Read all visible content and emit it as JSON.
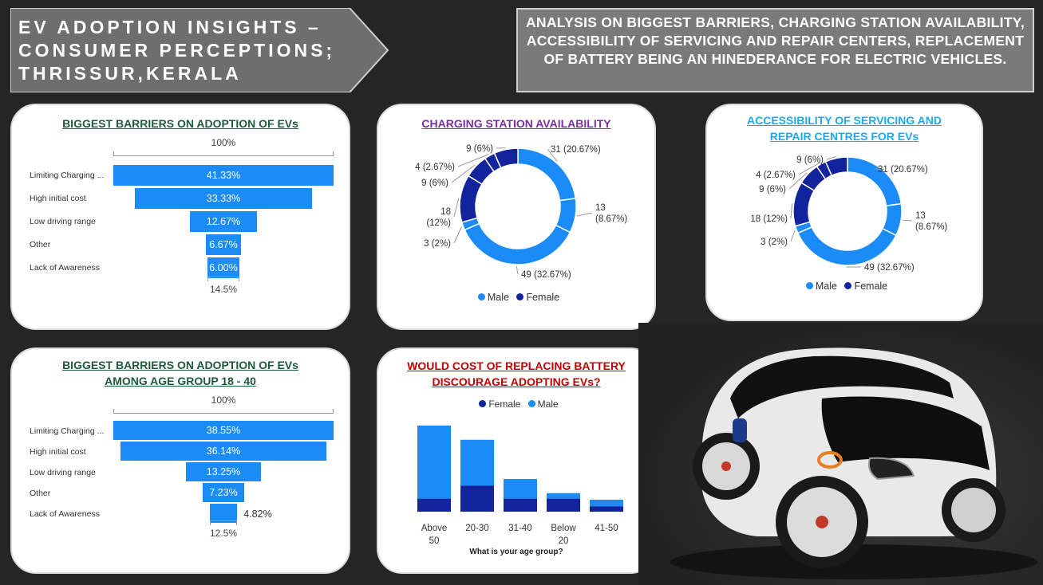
{
  "header": {
    "title_lines": [
      "EV ADOPTION INSIGHTS –",
      "CONSUMER PERCEPTIONS;",
      "THRISSUR,KERALA"
    ],
    "analysis": "ANALYSIS ON BIGGEST BARRIERS, CHARGING STATION AVAILABILITY, ACCESSIBILITY OF SERVICING AND REPAIR CENTERS, REPLACEMENT OF BATTERY BEING AN HINEDERANCE FOR ELECTRIC VEHICLES."
  },
  "colors": {
    "male": "#1b8cf7",
    "female": "#12239e",
    "title_green": "#1f5a3c",
    "title_purple": "#7a2fa0",
    "title_cyan": "#1aaaf0",
    "title_red": "#c00000"
  },
  "chart_data": [
    {
      "type": "funnel",
      "title": "BIGGEST BARRIERS ON ADOPTION OF EVs",
      "top_caption": "100%",
      "bottom_caption": "14.5%",
      "categories": [
        "Limiting Charging ...",
        "High initial cost",
        "Low driving range",
        "Other",
        "Lack of Awareness"
      ],
      "values": [
        41.33,
        33.33,
        12.67,
        6.67,
        6.0
      ],
      "value_labels": [
        "41.33%",
        "33.33%",
        "12.67%",
        "6.67%",
        "6.00%"
      ]
    },
    {
      "type": "pie",
      "title": "CHARGING STATION AVAILABILITY",
      "series": [
        {
          "name": "Male",
          "values": [
            31,
            13,
            49
          ]
        },
        {
          "name": "Female",
          "values": [
            3,
            18,
            9,
            4,
            9
          ]
        }
      ],
      "slices": [
        {
          "value": 31,
          "label": "31 (20.67%)",
          "series": "Male"
        },
        {
          "value": 13,
          "label": "13 (8.67%)",
          "series": "Male"
        },
        {
          "value": 49,
          "label": "49 (32.67%)",
          "series": "Male"
        },
        {
          "value": 3,
          "label": "3 (2%)",
          "series": "Male"
        },
        {
          "value": 18,
          "label": "18 (12%)",
          "series": "Female"
        },
        {
          "value": 9,
          "label": "9 (6%)",
          "series": "Female"
        },
        {
          "value": 4,
          "label": "4 (2.67%)",
          "series": "Female"
        },
        {
          "value": 9,
          "label": "9 (6%)",
          "series": "Female"
        }
      ],
      "legend": [
        "Male",
        "Female"
      ]
    },
    {
      "type": "pie",
      "title": "ACCESSIBILITY  OF SERVICING AND REPAIR CENTRES FOR EVs",
      "slices": [
        {
          "value": 31,
          "label": "31 (20.67%)",
          "series": "Male"
        },
        {
          "value": 13,
          "label": "13 (8.67%)",
          "series": "Male"
        },
        {
          "value": 49,
          "label": "49 (32.67%)",
          "series": "Male"
        },
        {
          "value": 3,
          "label": "3 (2%)",
          "series": "Male"
        },
        {
          "value": 18,
          "label": "18 (12%)",
          "series": "Female"
        },
        {
          "value": 9,
          "label": "9 (6%)",
          "series": "Female"
        },
        {
          "value": 4,
          "label": "4 (2.67%)",
          "series": "Female"
        },
        {
          "value": 9,
          "label": "9 (6%)",
          "series": "Female"
        }
      ],
      "legend": [
        "Male",
        "Female"
      ]
    },
    {
      "type": "funnel",
      "title": "BIGGEST BARRIERS ON ADOPTION OF EVs AMONG AGE GROUP 18 - 40",
      "top_caption": "100%",
      "bottom_caption": "12.5%",
      "categories": [
        "Limiting Charging ...",
        "High initial cost",
        "Low driving range",
        "Other",
        "Lack of Awareness"
      ],
      "values": [
        38.55,
        36.14,
        13.25,
        7.23,
        4.82
      ],
      "value_labels": [
        "38.55%",
        "36.14%",
        "13.25%",
        "7.23%",
        "4.82%"
      ]
    },
    {
      "type": "bar",
      "stacked": true,
      "title": "WOULD COST OF REPLACING BATTERY DISCOURAGE ADOPTING EVs?",
      "xlabel": "What is your age group?",
      "categories": [
        "Above 50",
        "20-30",
        "31-40",
        "Below 20",
        "41-50"
      ],
      "series": [
        {
          "name": "Female",
          "values": [
            12,
            24,
            12,
            12,
            5
          ]
        },
        {
          "name": "Male",
          "values": [
            67,
            42,
            18,
            5,
            6
          ]
        }
      ],
      "legend": [
        "Female",
        "Male"
      ]
    }
  ],
  "cards": {
    "barriers": {
      "title": "BIGGEST BARRIERS ON ADOPTION OF EVs"
    },
    "charging": {
      "title": "CHARGING STATION AVAILABILITY",
      "legend_male": "Male",
      "legend_female": "Female"
    },
    "servicing": {
      "title_line1": "ACCESSIBILITY  OF SERVICING AND",
      "title_line2": "REPAIR CENTRES FOR EVs",
      "legend_male": "Male",
      "legend_female": "Female"
    },
    "barriers_age": {
      "title_line1": "BIGGEST BARRIERS ON ADOPTION OF EVs",
      "title_line2": "AMONG AGE GROUP 18 - 40"
    },
    "battery": {
      "title_line1": "WOULD COST OF REPLACING BATTERY",
      "title_line2": "DISCOURAGE ADOPTING EVs?",
      "legend_female": "Female",
      "legend_male": "Male",
      "xlabel": "What is your age group?"
    }
  }
}
